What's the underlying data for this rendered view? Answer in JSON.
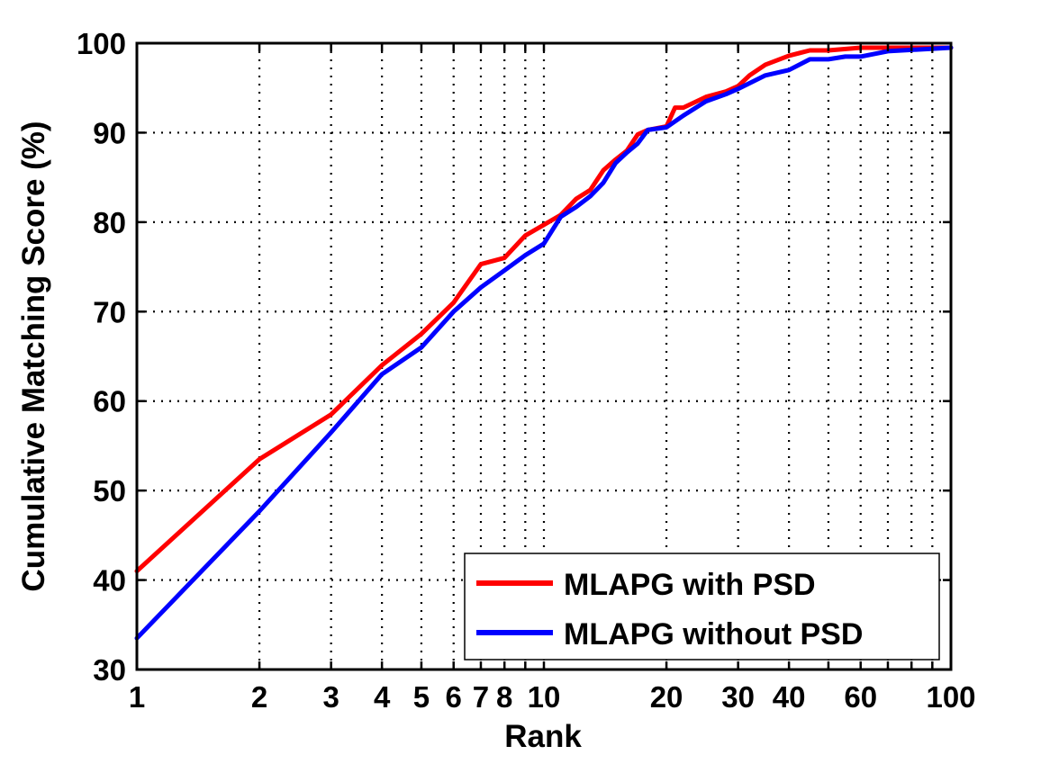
{
  "chart_data": {
    "type": "line",
    "title": "",
    "xlabel": "Rank",
    "ylabel": "Cumulative Matching Score (%)",
    "xscale": "log",
    "xlim": [
      1,
      100
    ],
    "ylim": [
      30,
      100
    ],
    "grid": true,
    "legend_position": "bottom-right",
    "x_ticks": [
      1,
      2,
      3,
      4,
      5,
      6,
      7,
      8,
      10,
      20,
      30,
      40,
      60,
      100
    ],
    "x_tick_labels": [
      "1",
      "2",
      "3",
      "4",
      "5",
      "6",
      "7",
      "8",
      "10",
      "20",
      "30",
      "40",
      "60",
      "100"
    ],
    "x_grid": [
      1,
      2,
      3,
      4,
      5,
      6,
      7,
      8,
      9,
      10,
      20,
      30,
      40,
      50,
      60,
      70,
      80,
      90,
      100
    ],
    "y_ticks": [
      30,
      40,
      50,
      60,
      70,
      80,
      90,
      100
    ],
    "y_tick_labels": [
      "30",
      "40",
      "50",
      "60",
      "70",
      "80",
      "90",
      "100"
    ],
    "series": [
      {
        "name": "MLAPG with PSD",
        "color": "#ff0000",
        "x": [
          1,
          2,
          3,
          4,
          5,
          6,
          7,
          8,
          9,
          10,
          11,
          12,
          13,
          14,
          15,
          16,
          17,
          18,
          20,
          21,
          22,
          25,
          28,
          30,
          32,
          35,
          40,
          45,
          50,
          60,
          70,
          100
        ],
        "y": [
          41,
          53.5,
          58.5,
          64,
          67.5,
          71,
          75.3,
          76,
          78.5,
          79.7,
          80.8,
          82.6,
          83.6,
          85.8,
          87,
          88,
          89.8,
          90.3,
          90.7,
          92.8,
          92.8,
          94,
          94.6,
          95.2,
          96.4,
          97.6,
          98.6,
          99.2,
          99.2,
          99.5,
          99.5,
          99.5
        ]
      },
      {
        "name": "MLAPG without PSD",
        "color": "#0000ff",
        "x": [
          1,
          2,
          3,
          4,
          5,
          6,
          7,
          8,
          9,
          10,
          11,
          12,
          13,
          14,
          15,
          16,
          17,
          18,
          20,
          22,
          25,
          28,
          30,
          35,
          40,
          45,
          50,
          55,
          60,
          70,
          100
        ],
        "y": [
          33.5,
          47.7,
          56.5,
          63,
          66,
          70,
          72.7,
          74.6,
          76.3,
          77.6,
          80.6,
          81.7,
          82.9,
          84.4,
          86.6,
          87.8,
          88.8,
          90.3,
          90.6,
          91.9,
          93.5,
          94.3,
          94.9,
          96.4,
          97,
          98.2,
          98.2,
          98.5,
          98.5,
          99.1,
          99.5
        ]
      }
    ]
  }
}
